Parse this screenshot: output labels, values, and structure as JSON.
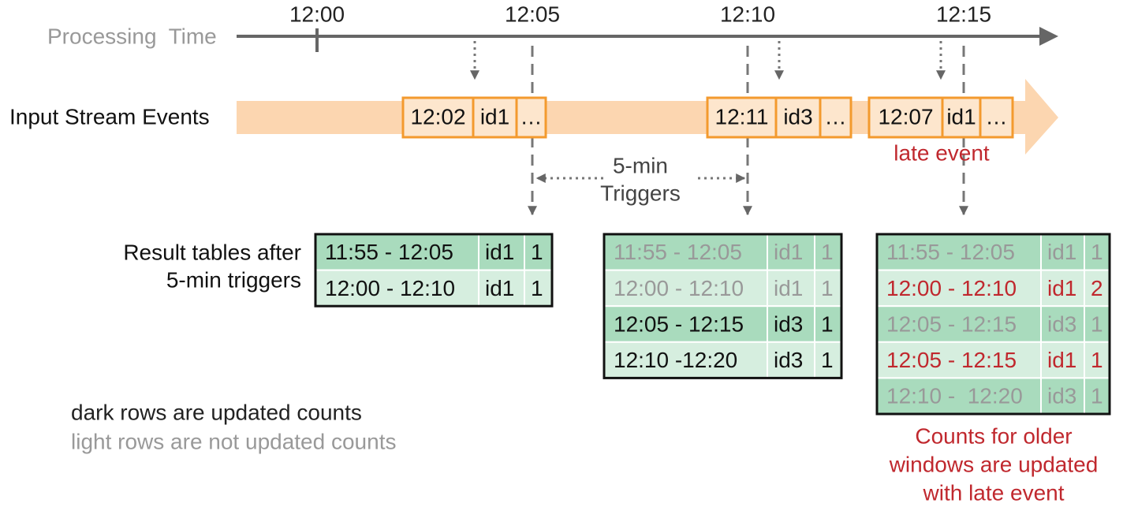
{
  "timeline": {
    "label": "Processing  Time",
    "ticks": [
      "12:00",
      "12:05",
      "12:10",
      "12:15"
    ]
  },
  "stream": {
    "label": "Input Stream Events",
    "events": [
      [
        "12:02",
        "id1",
        "…"
      ],
      [
        "12:11",
        "id3",
        "…"
      ],
      [
        "12:07",
        "id1",
        "…"
      ]
    ],
    "late_label": "late event"
  },
  "triggers": [
    "5-min",
    "Triggers"
  ],
  "result_label": [
    "Result tables after",
    "5-min triggers"
  ],
  "tables": [
    [
      [
        "11:55 - 12:05",
        "id1",
        1
      ],
      [
        "12:00 - 12:10",
        "id1",
        1
      ]
    ],
    [
      [
        "11:55 - 12:05",
        "id1",
        1
      ],
      [
        "12:00 - 12:10",
        "id1",
        1
      ],
      [
        "12:05 - 12:15",
        "id3",
        1
      ],
      [
        "12:10 -12:20",
        "id3",
        1
      ]
    ],
    [
      [
        "11:55 - 12:05",
        "id1",
        1
      ],
      [
        "12:00 - 12:10",
        "id1",
        2
      ],
      [
        "12:05 - 12:15",
        "id3",
        1
      ],
      [
        "12:05 - 12:15",
        "id1",
        1
      ],
      [
        "12:10 -  12:20",
        "id3",
        1
      ]
    ]
  ],
  "legend": [
    "dark rows are updated counts",
    "light rows are not updated counts"
  ],
  "note": [
    "Counts for older",
    "windows are updated",
    "with late event"
  ]
}
